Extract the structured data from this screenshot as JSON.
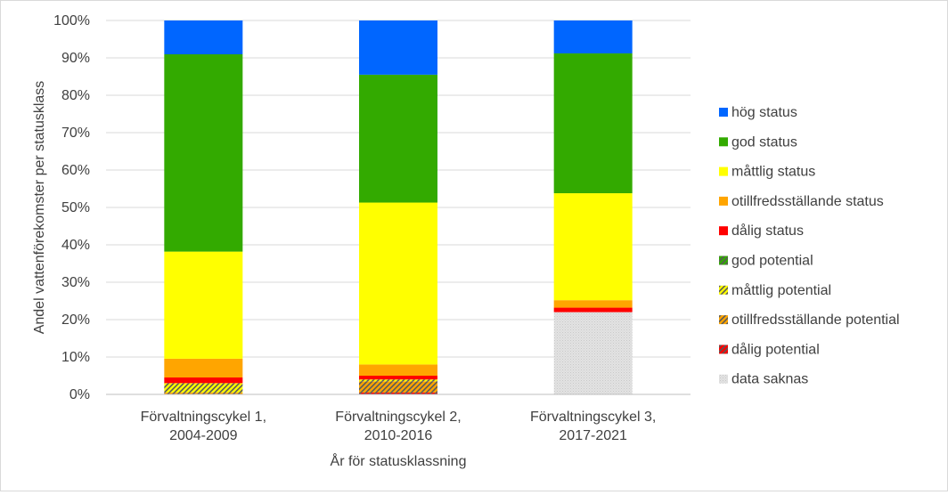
{
  "chart_data": {
    "type": "bar",
    "stacked": true,
    "percent": true,
    "title": "",
    "xlabel": "År för statusklassning",
    "ylabel": "Andel vattenförekomster per statusklass",
    "ylim": [
      0,
      100
    ],
    "yticks": [
      "0%",
      "10%",
      "20%",
      "30%",
      "40%",
      "50%",
      "60%",
      "70%",
      "80%",
      "90%",
      "100%"
    ],
    "categories": [
      [
        "Förvaltningscykel 1,",
        "2004-2009"
      ],
      [
        "Förvaltningscykel 2,",
        "2010-2016"
      ],
      [
        "Förvaltningscykel 3,",
        "2017-2021"
      ]
    ],
    "legend_position": "right",
    "grid": true,
    "series": [
      {
        "name": "data saknas",
        "color": "#d9d9d9",
        "pattern": "dots",
        "values": [
          0,
          0,
          22
        ]
      },
      {
        "name": "dålig potential",
        "color": "#ff0000",
        "pattern": "hatch",
        "values": [
          0,
          0.5,
          0
        ]
      },
      {
        "name": "otillfredsställande potential",
        "color": "#ffa500",
        "pattern": "hatch",
        "values": [
          0.5,
          3,
          0
        ]
      },
      {
        "name": "måttlig potential",
        "color": "#ffff00",
        "pattern": "hatch",
        "values": [
          2.5,
          0.5,
          0
        ]
      },
      {
        "name": "god potential",
        "color": "#33aa00",
        "pattern": "hatch",
        "values": [
          0,
          0,
          0
        ]
      },
      {
        "name": "dålig status",
        "color": "#ff0000",
        "pattern": "solid",
        "values": [
          1.5,
          1,
          1.2
        ]
      },
      {
        "name": "otillfredsställande status",
        "color": "#ffa500",
        "pattern": "solid",
        "values": [
          5,
          3,
          2
        ]
      },
      {
        "name": "måttlig status",
        "color": "#ffff00",
        "pattern": "solid",
        "values": [
          28.5,
          43.3,
          28.6
        ]
      },
      {
        "name": "god status",
        "color": "#33aa00",
        "pattern": "solid",
        "values": [
          52.5,
          34.2,
          37.4
        ]
      },
      {
        "name": "hög status",
        "color": "#0066ff",
        "pattern": "solid",
        "values": [
          9,
          14.5,
          8.8
        ]
      }
    ],
    "legend_order": [
      "hög status",
      "god status",
      "måttlig status",
      "otillfredsställande status",
      "dålig status",
      "god potential",
      "måttlig potential",
      "otillfredsställande potential",
      "dålig potential",
      "data saknas"
    ]
  }
}
